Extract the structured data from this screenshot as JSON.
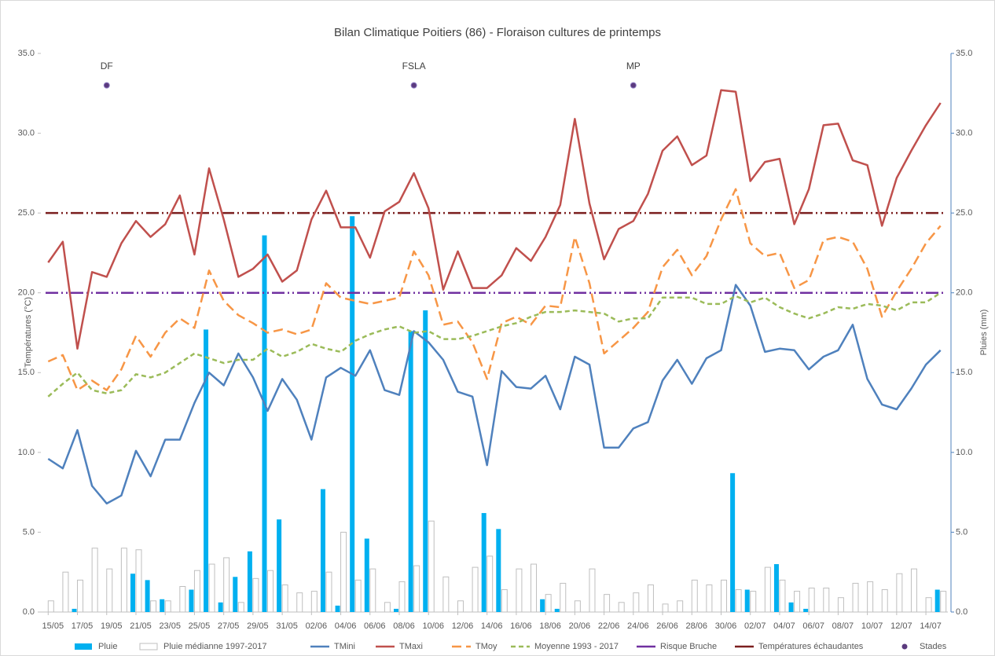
{
  "chart_data": {
    "type": "combo",
    "title": "Bilan Climatique Poitiers (86) - Floraison cultures de printemps",
    "ylabel": "Températures (°C)",
    "y2label": "Pluies (mm)",
    "categories": [
      "15/05",
      null,
      "17/05",
      null,
      "19/05",
      null,
      "21/05",
      null,
      "23/05",
      null,
      "25/05",
      null,
      "27/05",
      null,
      "29/05",
      null,
      "31/05",
      null,
      "02/06",
      null,
      "04/06",
      null,
      "06/06",
      null,
      "08/06",
      null,
      "10/06",
      null,
      "12/06",
      null,
      "14/06",
      null,
      "16/06",
      null,
      "18/06",
      null,
      "20/06",
      null,
      "22/06",
      null,
      "24/06",
      null,
      "26/06",
      null,
      "28/06",
      null,
      "30/06",
      null,
      "02/07",
      null,
      "04/07",
      null,
      "06/07",
      null,
      "08/07",
      null,
      "10/07",
      null,
      "12/07",
      null,
      "14/07",
      null
    ],
    "ylim": [
      0,
      35
    ],
    "yticks": [
      {
        "value": 0,
        "label": "0.0"
      },
      {
        "value": 5,
        "label": "5.0"
      },
      {
        "value": 10,
        "label": "10.0"
      },
      {
        "value": 15,
        "label": "15.0"
      },
      {
        "value": 20,
        "label": "20.0"
      },
      {
        "value": 25,
        "label": "25.0"
      },
      {
        "value": 30,
        "label": "30.0"
      },
      {
        "value": 35,
        "label": "35.0"
      }
    ],
    "y2lim": [
      0,
      35
    ],
    "y2ticks": [
      {
        "value": 0,
        "label": "0.0"
      },
      {
        "value": 5,
        "label": "5.0"
      },
      {
        "value": 10,
        "label": "10.0"
      },
      {
        "value": 15,
        "label": "15.0"
      },
      {
        "value": 20,
        "label": "20.0"
      },
      {
        "value": 25,
        "label": "25.0"
      },
      {
        "value": 30,
        "label": "30.0"
      },
      {
        "value": 35,
        "label": "35.0"
      }
    ],
    "grid": false,
    "legend": "bottom",
    "series": [
      {
        "name": "Pluie",
        "type": "bar",
        "axis": "y2",
        "color": "#00b0f0",
        "values": [
          0,
          0,
          0.2,
          0,
          0,
          0,
          2.4,
          2.0,
          0.8,
          0,
          1.4,
          17.7,
          0.6,
          2.2,
          3.8,
          23.6,
          5.8,
          0,
          0,
          7.7,
          0.4,
          24.8,
          4.6,
          0,
          0.2,
          17.6,
          18.9,
          0,
          0,
          0,
          6.2,
          5.2,
          0,
          0,
          0.8,
          0.2,
          0,
          0,
          0,
          0,
          0,
          0,
          0,
          0,
          0,
          0,
          0,
          8.7,
          1.4,
          0,
          3.0,
          0.6,
          0.2,
          0,
          0,
          0,
          0,
          0,
          0,
          0,
          0,
          1.4
        ]
      },
      {
        "name": "Pluie médianne 1997-2017",
        "type": "bar",
        "axis": "y2",
        "color": "#bfbfbf",
        "values": [
          0.7,
          2.5,
          2.0,
          4.0,
          2.7,
          4.0,
          3.9,
          0.7,
          0.7,
          1.6,
          2.6,
          3.0,
          3.4,
          0.6,
          2.1,
          2.6,
          1.7,
          1.2,
          1.3,
          2.5,
          5.0,
          2.0,
          2.7,
          0.6,
          1.9,
          2.9,
          5.7,
          2.2,
          0.7,
          2.8,
          3.5,
          1.4,
          2.7,
          3.0,
          1.1,
          1.8,
          0.7,
          2.7,
          1.1,
          0.6,
          1.2,
          1.7,
          0.5,
          0.7,
          2.0,
          1.7,
          2.0,
          1.4,
          1.3,
          2.8,
          2.0,
          1.3,
          1.5,
          1.5,
          0.9,
          1.8,
          1.9,
          1.4,
          2.4,
          2.7,
          0.9,
          1.3
        ]
      },
      {
        "name": "TMini",
        "type": "line",
        "color": "#4f81bd",
        "dash": "solid",
        "values": [
          9.6,
          9.0,
          11.4,
          7.9,
          6.8,
          7.3,
          10.1,
          8.5,
          10.8,
          10.8,
          13.1,
          15.0,
          14.2,
          16.2,
          14.7,
          12.6,
          14.6,
          13.3,
          10.8,
          14.7,
          15.3,
          14.8,
          16.4,
          13.9,
          13.6,
          17.6,
          16.9,
          15.8,
          13.8,
          13.5,
          9.2,
          15.1,
          14.1,
          14.0,
          14.8,
          12.7,
          16.0,
          15.5,
          10.3,
          10.3,
          11.5,
          11.9,
          14.5,
          15.8,
          14.3,
          15.9,
          16.4,
          20.5,
          19.2,
          16.3,
          16.5,
          16.4,
          15.2,
          16.0,
          16.4,
          18.0,
          14.6,
          13.0,
          12.7,
          14.0,
          15.5,
          16.4
        ]
      },
      {
        "name": "TMaxi",
        "type": "line",
        "color": "#c0504d",
        "dash": "solid",
        "values": [
          21.9,
          23.2,
          16.5,
          21.3,
          21.0,
          23.1,
          24.5,
          23.5,
          24.3,
          26.1,
          22.4,
          27.8,
          24.6,
          21.0,
          21.5,
          22.4,
          20.7,
          21.4,
          24.6,
          26.4,
          24.1,
          24.1,
          22.2,
          25.1,
          25.7,
          27.5,
          25.3,
          20.2,
          22.6,
          20.3,
          20.3,
          21.1,
          22.8,
          22.0,
          23.5,
          25.5,
          30.9,
          25.6,
          22.1,
          24.0,
          24.5,
          26.2,
          28.9,
          29.8,
          28.0,
          28.6,
          32.7,
          32.6,
          27.0,
          28.2,
          28.4,
          24.3,
          26.5,
          30.5,
          30.6,
          28.3,
          28.0,
          24.2,
          27.2,
          28.9,
          30.5,
          31.9
        ]
      },
      {
        "name": "TMoy",
        "type": "line",
        "color": "#f79646",
        "dash": "long",
        "values": [
          15.7,
          16.1,
          13.9,
          14.5,
          13.9,
          15.2,
          17.3,
          16.0,
          17.5,
          18.4,
          17.8,
          21.4,
          19.5,
          18.6,
          18.1,
          17.5,
          17.7,
          17.4,
          17.7,
          20.6,
          19.7,
          19.5,
          19.3,
          19.5,
          19.7,
          22.6,
          21.1,
          18.0,
          18.2,
          16.9,
          14.6,
          18.1,
          18.5,
          18.0,
          19.2,
          19.1,
          23.5,
          20.6,
          16.2,
          17.0,
          17.8,
          18.8,
          21.6,
          22.7,
          21.1,
          22.3,
          24.6,
          26.5,
          23.1,
          22.3,
          22.5,
          20.3,
          20.8,
          23.3,
          23.5,
          23.2,
          21.5,
          18.5,
          20.1,
          21.5,
          23.1,
          24.2
        ]
      },
      {
        "name": "Moyenne 1993 - 2017",
        "type": "line",
        "color": "#9bbb59",
        "dash": "short",
        "values": [
          13.5,
          14.3,
          15.0,
          13.9,
          13.7,
          13.9,
          14.9,
          14.7,
          15.0,
          15.6,
          16.2,
          15.9,
          15.6,
          15.8,
          15.8,
          16.5,
          16.0,
          16.3,
          16.8,
          16.5,
          16.3,
          17.0,
          17.4,
          17.7,
          17.9,
          17.5,
          17.6,
          17.1,
          17.1,
          17.3,
          17.6,
          17.9,
          18.1,
          18.5,
          18.8,
          18.8,
          18.9,
          18.8,
          18.7,
          18.2,
          18.4,
          18.4,
          19.7,
          19.7,
          19.7,
          19.3,
          19.3,
          19.8,
          19.4,
          19.7,
          19.1,
          18.7,
          18.4,
          18.7,
          19.1,
          19.0,
          19.3,
          19.2,
          18.9,
          19.4,
          19.4,
          20.0
        ]
      },
      {
        "name": "Risque Bruche",
        "type": "hline",
        "color": "#7030a0",
        "value": 20
      },
      {
        "name": "Températures échaudantes",
        "type": "hline",
        "color": "#7b1f1f",
        "value": 25
      },
      {
        "name": "Stades",
        "type": "scatter",
        "color": "#5b3a7e",
        "values": [
          null,
          null,
          null,
          null,
          33,
          null,
          null,
          null,
          null,
          null,
          null,
          null,
          null,
          null,
          null,
          null,
          null,
          null,
          null,
          null,
          null,
          null,
          null,
          null,
          null,
          33,
          null,
          null,
          null,
          null,
          null,
          null,
          null,
          null,
          null,
          null,
          null,
          null,
          null,
          null,
          33,
          null,
          null,
          null,
          null,
          null,
          null,
          null,
          null,
          null,
          null,
          null,
          null,
          null,
          null,
          null,
          null,
          null,
          null,
          null,
          null,
          null
        ],
        "labels": [
          null,
          null,
          null,
          null,
          "DF",
          null,
          null,
          null,
          null,
          null,
          null,
          null,
          null,
          null,
          null,
          null,
          null,
          null,
          null,
          null,
          null,
          null,
          null,
          null,
          null,
          "FSLA",
          null,
          null,
          null,
          null,
          null,
          null,
          null,
          null,
          null,
          null,
          null,
          null,
          null,
          null,
          "MP",
          null,
          null,
          null,
          null,
          null,
          null,
          null,
          null,
          null,
          null,
          null,
          null,
          null,
          null,
          null,
          null,
          null,
          null,
          null,
          null,
          null
        ]
      }
    ]
  }
}
